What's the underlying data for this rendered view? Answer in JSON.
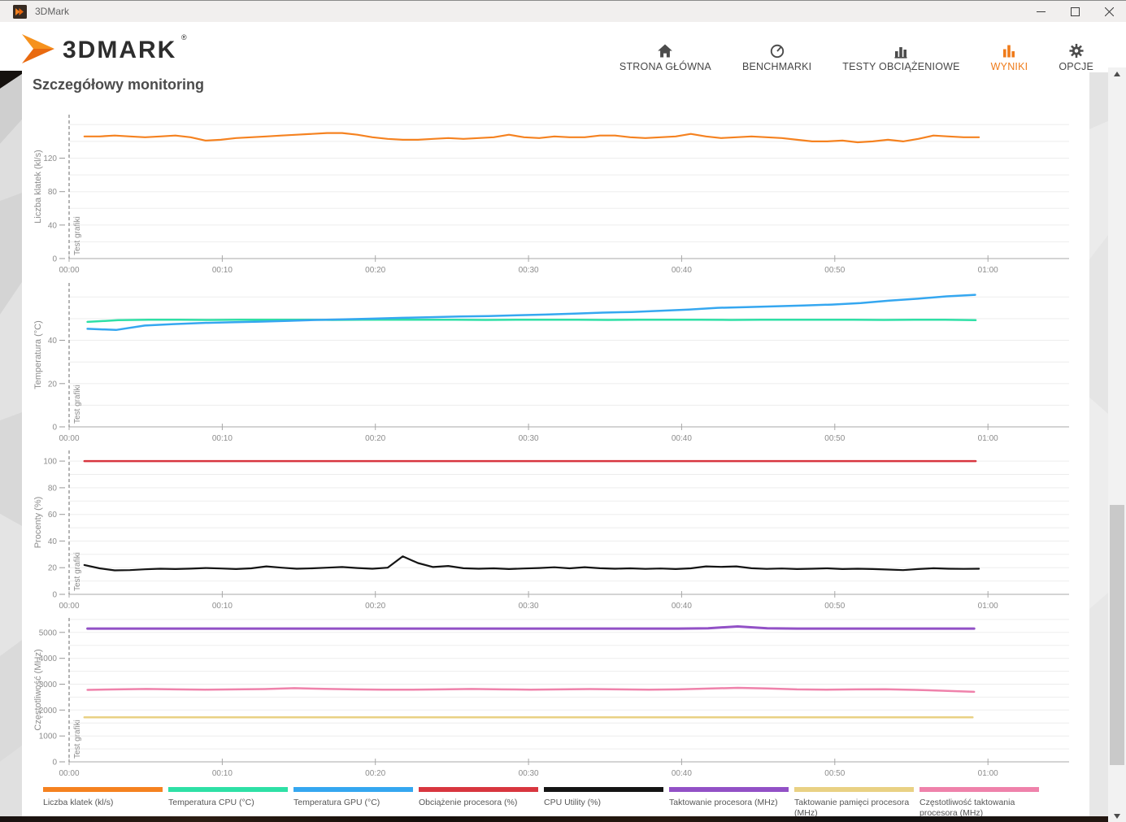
{
  "window": {
    "title": "3DMark"
  },
  "header": {
    "brand": "3DMARK",
    "registered": "®",
    "accent_color": "#ef7b1a",
    "nav": [
      {
        "label": "STRONA GŁÓWNA",
        "icon": "home-icon",
        "active": false
      },
      {
        "label": "BENCHMARKI",
        "icon": "gauge-icon",
        "active": false
      },
      {
        "label": "TESTY OBCIĄŻENIOWE",
        "icon": "bar-chart-icon",
        "active": false
      },
      {
        "label": "WYNIKI",
        "icon": "results-bars-icon",
        "active": true
      },
      {
        "label": "OPCJE",
        "icon": "gear-icon",
        "active": false
      }
    ]
  },
  "page": {
    "title": "Szczegółowy monitoring",
    "phase_label": "Test grafiki"
  },
  "chart_data": [
    {
      "type": "line",
      "ylabel": "Liczba klatek (kl/s)",
      "ylim": [
        0,
        172
      ],
      "yticks": [
        0,
        40,
        80,
        120
      ],
      "xlim_minutes": [
        0,
        65.3
      ],
      "xticks": [
        {
          "min": 0,
          "label": "00:00"
        },
        {
          "min": 10,
          "label": "00:10"
        },
        {
          "min": 20,
          "label": "00:20"
        },
        {
          "min": 30,
          "label": "00:30"
        },
        {
          "min": 40,
          "label": "00:40"
        },
        {
          "min": 50,
          "label": "00:50"
        },
        {
          "min": 60,
          "label": "01:00"
        }
      ],
      "grid": true,
      "annotation": {
        "x_min": 0,
        "label": "Test grafiki"
      },
      "series": [
        {
          "name": "Liczba klatek (kl/s)",
          "color": "#f58220",
          "width": 2.2,
          "x_start": 1,
          "x_step": 0.99,
          "values": [
            146,
            146,
            147,
            146,
            145,
            146,
            147,
            145,
            141,
            142,
            144,
            145,
            146,
            147,
            148,
            149,
            150,
            150,
            148,
            145,
            143,
            142,
            142,
            143,
            144,
            143,
            144,
            145,
            148,
            145,
            144,
            146,
            145,
            145,
            147,
            147,
            145,
            144,
            145,
            146,
            149,
            146,
            144,
            145,
            146,
            145,
            144,
            142,
            140,
            140,
            141,
            139,
            140,
            142,
            140,
            143,
            147,
            146,
            145,
            145
          ]
        }
      ]
    },
    {
      "type": "line",
      "ylabel": "Temperatura (°C)",
      "ylim": [
        0,
        66.5
      ],
      "yticks": [
        0,
        20,
        40
      ],
      "xlim_minutes": [
        0,
        65.3
      ],
      "xticks": [
        {
          "min": 0,
          "label": "00:00"
        },
        {
          "min": 10,
          "label": "00:10"
        },
        {
          "min": 20,
          "label": "00:20"
        },
        {
          "min": 30,
          "label": "00:30"
        },
        {
          "min": 40,
          "label": "00:40"
        },
        {
          "min": 50,
          "label": "00:50"
        },
        {
          "min": 60,
          "label": "01:00"
        }
      ],
      "grid": true,
      "annotation": {
        "x_min": 0,
        "label": "Test grafiki"
      },
      "series": [
        {
          "name": "Temperatura CPU (°C)",
          "color": "#2ee0a6",
          "width": 2.5,
          "x_start": 1.2,
          "x_step": 2.0,
          "values": [
            48.5,
            49.3,
            49.5,
            49.5,
            49.4,
            49.5,
            49.5,
            49.5,
            49.4,
            49.5,
            49.5,
            49.5,
            49.5,
            49.4,
            49.5,
            49.5,
            49.5,
            49.4,
            49.5,
            49.5,
            49.5,
            49.4,
            49.5,
            49.5,
            49.5,
            49.5,
            49.4,
            49.5,
            49.5,
            49.3
          ]
        },
        {
          "name": "Temperatura GPU (°C)",
          "color": "#35a7f0",
          "width": 2.5,
          "x_start": 1.2,
          "x_step": 1.87,
          "values": [
            45.3,
            44.8,
            46.8,
            47.5,
            48,
            48.3,
            48.6,
            49,
            49.4,
            49.7,
            50,
            50.4,
            50.7,
            51,
            51.2,
            51.6,
            51.9,
            52.3,
            52.8,
            53.1,
            53.6,
            54.2,
            55,
            55.3,
            55.7,
            56.1,
            56.5,
            57.2,
            58.3,
            59.2,
            60.3,
            61
          ]
        }
      ]
    },
    {
      "type": "line",
      "ylabel": "Procenty (%)",
      "ylim": [
        0,
        108
      ],
      "yticks": [
        0,
        20,
        40,
        60,
        80,
        100
      ],
      "xlim_minutes": [
        0,
        65.3
      ],
      "xticks": [
        {
          "min": 0,
          "label": "00:00"
        },
        {
          "min": 10,
          "label": "00:10"
        },
        {
          "min": 20,
          "label": "00:20"
        },
        {
          "min": 30,
          "label": "00:30"
        },
        {
          "min": 40,
          "label": "00:40"
        },
        {
          "min": 50,
          "label": "00:50"
        },
        {
          "min": 60,
          "label": "01:00"
        }
      ],
      "grid": true,
      "annotation": {
        "x_min": 0,
        "label": "Test grafiki"
      },
      "series": [
        {
          "name": "Obciążenie procesora (%)",
          "color": "#d8363f",
          "width": 2.5,
          "x_start": 1,
          "x_step": 58.2,
          "values": [
            100,
            100
          ]
        },
        {
          "name": "CPU Utility (%)",
          "color": "#141414",
          "width": 2.2,
          "x_start": 1,
          "x_step": 0.99,
          "values": [
            22,
            19.5,
            18,
            18.2,
            18.8,
            19.2,
            19,
            19.3,
            19.8,
            19.4,
            19,
            19.5,
            21,
            20,
            19.2,
            19.5,
            20,
            20.5,
            19.8,
            19.2,
            20,
            28.5,
            23.5,
            20.5,
            21.3,
            19.6,
            19.2,
            19.5,
            19,
            19.4,
            19.8,
            20.3,
            19.5,
            20.4,
            19.6,
            19.2,
            19.5,
            19.1,
            19.4,
            19,
            19.5,
            21,
            20.6,
            21,
            19.6,
            19.1,
            19.4,
            19,
            19.2,
            19.5,
            19,
            19.2,
            19,
            18.6,
            18.2,
            19,
            19.6,
            19.2,
            19.1,
            19.2
          ]
        }
      ]
    },
    {
      "type": "line",
      "ylabel": "Częstotliwość (MHz)",
      "ylim": [
        0,
        5560
      ],
      "yticks": [
        0,
        1000,
        2000,
        3000,
        4000,
        5000
      ],
      "xlim_minutes": [
        0,
        65.3
      ],
      "xticks": [
        {
          "min": 0,
          "label": "00:00"
        },
        {
          "min": 10,
          "label": "00:10"
        },
        {
          "min": 20,
          "label": "00:20"
        },
        {
          "min": 30,
          "label": "00:30"
        },
        {
          "min": 40,
          "label": "00:40"
        },
        {
          "min": 50,
          "label": "00:50"
        },
        {
          "min": 60,
          "label": "01:00"
        }
      ],
      "grid": true,
      "annotation": {
        "x_min": 0,
        "label": "Test grafiki"
      },
      "series": [
        {
          "name": "Taktowanie procesora (MHz)",
          "color": "#9251c6",
          "width": 3,
          "x_start": 1.2,
          "x_step": 1.93,
          "values": [
            5150,
            5150,
            5150,
            5150,
            5150,
            5150,
            5150,
            5150,
            5150,
            5150,
            5150,
            5150,
            5150,
            5150,
            5150,
            5150,
            5150,
            5150,
            5150,
            5150,
            5150,
            5160,
            5230,
            5160,
            5150,
            5150,
            5150,
            5150,
            5150,
            5150,
            5150
          ]
        },
        {
          "name": "Częstotliwość taktowania procesora (MHz)",
          "color": "#ef82ab",
          "width": 2.5,
          "x_start": 1.2,
          "x_step": 1.93,
          "values": [
            2780,
            2800,
            2815,
            2800,
            2790,
            2800,
            2810,
            2845,
            2820,
            2800,
            2790,
            2785,
            2800,
            2815,
            2800,
            2790,
            2800,
            2810,
            2800,
            2790,
            2800,
            2830,
            2860,
            2835,
            2800,
            2790,
            2800,
            2805,
            2780,
            2745,
            2705
          ]
        },
        {
          "name": "Taktowanie pamięci procesora (MHz)",
          "color": "#e9d184",
          "width": 2.5,
          "x_start": 1,
          "x_step": 58,
          "values": [
            1720,
            1720
          ]
        }
      ]
    }
  ],
  "legend": [
    {
      "label": "Liczba klatek (kl/s)",
      "color": "#f58220"
    },
    {
      "label": "Temperatura CPU (°C)",
      "color": "#2ee0a6"
    },
    {
      "label": "Temperatura GPU (°C)",
      "color": "#35a7f0"
    },
    {
      "label": "Obciążenie procesora (%)",
      "color": "#d8363f"
    },
    {
      "label": "CPU Utility (%)",
      "color": "#141414"
    },
    {
      "label": "Taktowanie procesora (MHz)",
      "color": "#9251c6"
    },
    {
      "label": "Taktowanie pamięci procesora (MHz)",
      "color": "#e9d184"
    },
    {
      "label": "Częstotliwość taktowania procesora (MHz)",
      "color": "#ef82ab"
    }
  ]
}
